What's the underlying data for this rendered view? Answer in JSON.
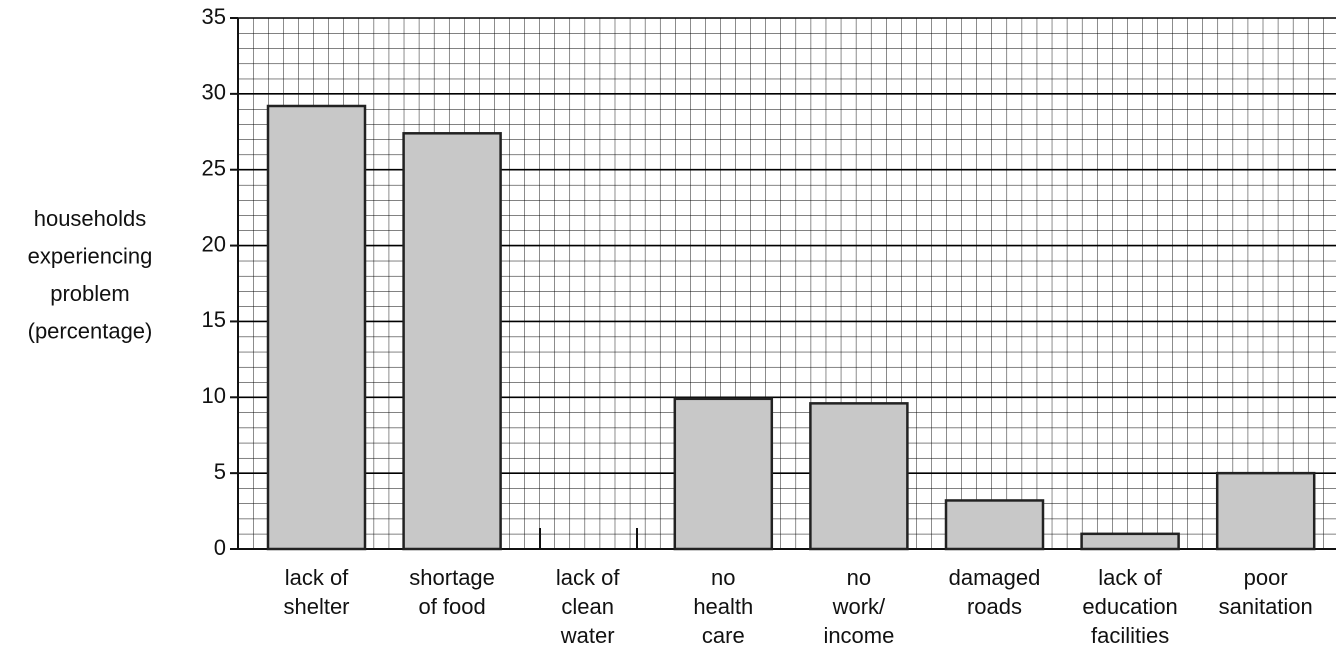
{
  "chart_data": {
    "type": "bar",
    "y_label": [
      "households",
      "experiencing",
      "problem",
      "(percentage)"
    ],
    "categories": [
      [
        "lack of",
        "shelter"
      ],
      [
        "shortage",
        "of food"
      ],
      [
        "lack of",
        "clean",
        "water"
      ],
      [
        "no",
        "health",
        "care"
      ],
      [
        "no",
        "work/",
        "income"
      ],
      [
        "damaged",
        "roads"
      ],
      [
        "lack of",
        "education",
        "facilities"
      ],
      [
        "poor",
        "sanitation"
      ]
    ],
    "values": [
      29.2,
      27.4,
      null,
      9.9,
      9.6,
      3.2,
      1.0,
      5.0
    ],
    "color": "#c8c8c8",
    "ylim": [
      0,
      35
    ],
    "yticks": [
      0,
      5,
      10,
      15,
      20,
      25,
      30,
      35
    ],
    "grid": true
  }
}
